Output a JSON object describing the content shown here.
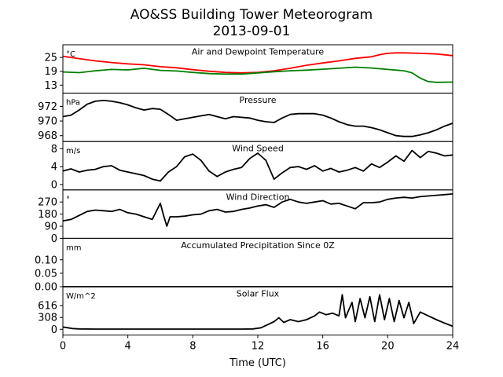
{
  "chart_data": {
    "type": "line",
    "title": "AO&SS Building Tower Meteorogram",
    "subtitle": "2013-09-01",
    "xlabel": "Time (UTC)",
    "xlim": [
      0,
      24
    ],
    "x_ticks": [
      0,
      4,
      8,
      12,
      16,
      20,
      24
    ],
    "panels": [
      {
        "title": "Air and Dewpoint Temperature",
        "unit": "°C",
        "ylim": [
          9.5,
          30.5
        ],
        "y_ticks": [
          25,
          19,
          13
        ],
        "series": [
          {
            "color": "#ff0000",
            "x": [
              0,
              1,
              2,
              3,
              4,
              5,
              6,
              7,
              8,
              9,
              10,
              11,
              12,
              13,
              14,
              15,
              16,
              17,
              18,
              19,
              19.5,
              20,
              20.5,
              21,
              22,
              23,
              24
            ],
            "y": [
              25.5,
              24.5,
              23.5,
              22.8,
              22.2,
              21.8,
              21.0,
              20.5,
              19.7,
              19.0,
              18.5,
              18.3,
              18.5,
              19.2,
              20.3,
              21.6,
              22.6,
              23.5,
              24.6,
              25.3,
              26.2,
              26.8,
              27.0,
              27.0,
              26.8,
              26.5,
              25.8
            ]
          },
          {
            "color": "#008000",
            "x": [
              0,
              1,
              2,
              3,
              4,
              5,
              6,
              7,
              8,
              9,
              10,
              11,
              12,
              13,
              14,
              15,
              16,
              17,
              18,
              19,
              20,
              21,
              21.5,
              22,
              22.5,
              23,
              24
            ],
            "y": [
              18.7,
              18.4,
              19.2,
              19.8,
              19.6,
              20.3,
              19.4,
              19.1,
              18.5,
              18.0,
              17.8,
              17.8,
              18.3,
              18.8,
              19.2,
              19.5,
              19.9,
              20.3,
              20.8,
              20.4,
              19.8,
              19.2,
              18.3,
              16.0,
              14.5,
              14.2,
              14.3
            ]
          }
        ]
      },
      {
        "title": "Pressure",
        "unit": "hPa",
        "ylim": [
          967.2,
          973.8
        ],
        "y_ticks": [
          972,
          970,
          968
        ],
        "series": [
          {
            "color": "#000000",
            "x": [
              0,
              0.5,
              1,
              1.5,
              2,
              2.5,
              3,
              3.5,
              4,
              4.5,
              5,
              5.5,
              6,
              6.5,
              7,
              7.5,
              8,
              8.5,
              9,
              9.5,
              10,
              10.5,
              11,
              11.5,
              12,
              12.5,
              13,
              13.5,
              14,
              14.5,
              15,
              15.5,
              16,
              16.5,
              17,
              17.5,
              18,
              18.5,
              19,
              19.5,
              20,
              20.5,
              21,
              21.5,
              22,
              22.5,
              23,
              23.5,
              24
            ],
            "y": [
              970.6,
              970.8,
              971.5,
              972.3,
              972.7,
              972.8,
              972.7,
              972.5,
              972.2,
              971.8,
              971.5,
              971.7,
              971.6,
              970.9,
              970.1,
              970.3,
              970.5,
              970.7,
              970.9,
              970.6,
              970.3,
              970.6,
              970.5,
              970.4,
              970.1,
              969.9,
              969.8,
              970.4,
              970.9,
              971.0,
              971.0,
              971.0,
              970.8,
              970.4,
              969.9,
              969.5,
              969.3,
              969.3,
              969.1,
              968.8,
              968.4,
              968.0,
              967.9,
              967.9,
              968.1,
              968.4,
              968.8,
              969.3,
              969.7
            ]
          }
        ]
      },
      {
        "title": "Wind Speed",
        "unit": "m/s",
        "ylim": [
          -1.2,
          9.6
        ],
        "y_ticks": [
          8,
          4,
          0
        ],
        "series": [
          {
            "color": "#000000",
            "x": [
              0,
              0.5,
              1,
              1.5,
              2,
              2.5,
              3,
              3.5,
              4,
              4.5,
              5,
              5.5,
              6,
              6.5,
              7,
              7.5,
              8,
              8.5,
              9,
              9.5,
              10,
              10.5,
              11,
              11.5,
              12,
              12.5,
              13,
              13.5,
              14,
              14.5,
              15,
              15.5,
              16,
              16.5,
              17,
              17.5,
              18,
              18.5,
              19,
              19.5,
              20,
              20.5,
              21,
              21.5,
              22,
              22.5,
              23,
              23.5,
              24
            ],
            "y": [
              3.0,
              3.5,
              2.8,
              3.2,
              3.4,
              4.0,
              4.2,
              3.2,
              2.8,
              2.4,
              2.0,
              1.2,
              0.8,
              2.8,
              4.0,
              6.2,
              6.8,
              5.4,
              3.0,
              1.8,
              2.8,
              3.4,
              3.8,
              5.8,
              7.0,
              5.4,
              1.2,
              2.6,
              3.8,
              4.0,
              3.4,
              4.2,
              3.0,
              3.6,
              2.8,
              3.2,
              3.8,
              3.0,
              4.6,
              3.8,
              5.0,
              6.4,
              5.2,
              7.6,
              6.0,
              7.4,
              7.0,
              6.4,
              6.6
            ]
          }
        ]
      },
      {
        "title": "Wind Direction",
        "unit": "°",
        "ylim": [
          0,
          360
        ],
        "y_ticks": [
          270,
          180,
          90,
          0
        ],
        "series": [
          {
            "color": "#000000",
            "x": [
              0,
              0.5,
              1,
              1.5,
              2,
              2.5,
              3,
              3.5,
              4,
              4.5,
              5,
              5.5,
              6,
              6.2,
              6.4,
              6.6,
              7,
              7.5,
              8,
              8.5,
              9,
              9.5,
              10,
              10.5,
              11,
              11.5,
              12,
              12.5,
              13,
              13.5,
              14,
              14.5,
              15,
              15.5,
              16,
              16.5,
              17,
              17.5,
              18,
              18.5,
              19,
              19.5,
              20,
              20.5,
              21,
              21.5,
              22,
              22.5,
              23,
              23.5,
              24
            ],
            "y": [
              130,
              140,
              170,
              200,
              210,
              205,
              200,
              215,
              190,
              180,
              160,
              140,
              260,
              170,
              90,
              160,
              160,
              165,
              175,
              180,
              205,
              215,
              195,
              200,
              215,
              225,
              240,
              250,
              230,
              270,
              290,
              270,
              260,
              270,
              280,
              255,
              260,
              240,
              220,
              265,
              265,
              270,
              290,
              300,
              305,
              300,
              310,
              315,
              320,
              325,
              330
            ]
          }
        ]
      },
      {
        "title": "Accumulated Precipitation Since 0Z",
        "unit": "mm",
        "ylim": [
          0,
          0.18
        ],
        "y_ticks": [
          0.1,
          0.05,
          0.0
        ],
        "y_tick_labels": [
          "0.10",
          "0.05",
          "0.00"
        ],
        "series": [
          {
            "color": "#000000",
            "x": [
              0,
              24
            ],
            "y": [
              0,
              0
            ]
          }
        ]
      },
      {
        "title": "Solar Flux",
        "unit": "W/m^2",
        "ylim": [
          -150,
          1110
        ],
        "y_ticks": [
          616,
          308,
          0
        ],
        "series": [
          {
            "color": "#000000",
            "x": [
              0,
              0.3,
              0.6,
              1,
              2,
              3,
              4,
              5,
              6,
              7,
              8,
              9,
              10,
              11,
              11.7,
              12.2,
              12.6,
              13,
              13.3,
              13.6,
              14,
              14.5,
              15,
              15.5,
              15.8,
              16.2,
              16.6,
              17,
              17.2,
              17.4,
              17.6,
              17.8,
              18,
              18.3,
              18.6,
              18.9,
              19.2,
              19.5,
              19.8,
              20.1,
              20.4,
              20.7,
              21,
              21.3,
              21.6,
              22,
              22.5,
              23,
              23.5,
              24
            ],
            "y": [
              60,
              40,
              20,
              10,
              5,
              5,
              5,
              5,
              5,
              5,
              5,
              5,
              5,
              5,
              10,
              40,
              120,
              200,
              300,
              180,
              250,
              200,
              250,
              350,
              450,
              380,
              420,
              350,
              900,
              300,
              500,
              700,
              200,
              800,
              300,
              850,
              200,
              900,
              250,
              800,
              200,
              750,
              300,
              700,
              150,
              450,
              350,
              250,
              160,
              80
            ]
          }
        ]
      }
    ]
  }
}
